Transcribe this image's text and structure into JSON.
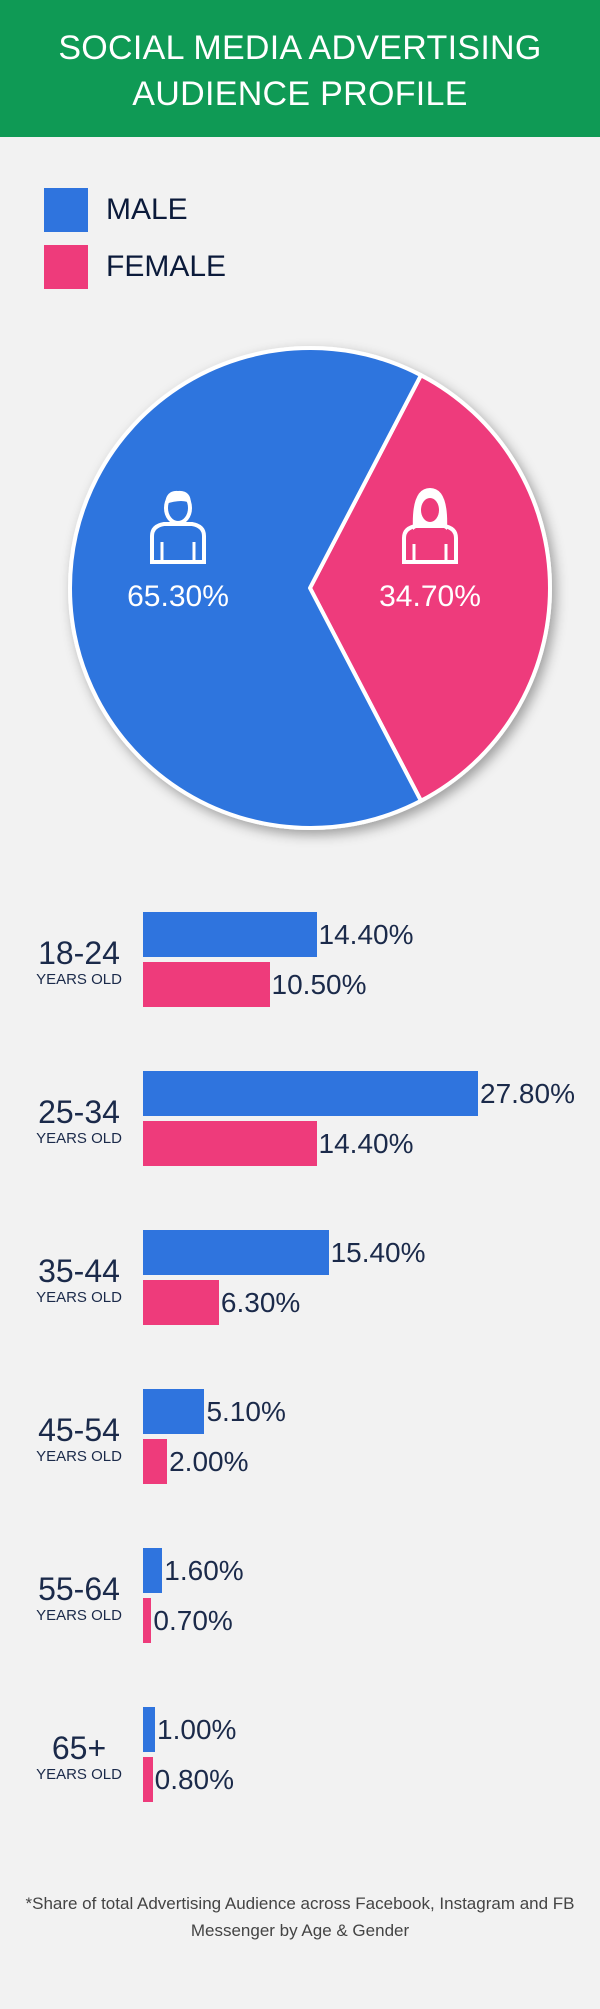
{
  "header": {
    "title": "SOCIAL MEDIA ADVERTISING\nAUDIENCE PROFILE"
  },
  "colors": {
    "male": "#2f74de",
    "female": "#ee3b7b",
    "header": "#0f9a55"
  },
  "legend": [
    {
      "label": "MALE",
      "color": "#2f74de"
    },
    {
      "label": "FEMALE",
      "color": "#ee3b7b"
    }
  ],
  "icons": {
    "male": "male-person-icon",
    "female": "female-person-icon"
  },
  "chart_data": [
    {
      "type": "pie",
      "slices": [
        {
          "name": "MALE",
          "value": 65.3,
          "label": "65.30%",
          "color": "#2f74de"
        },
        {
          "name": "FEMALE",
          "value": 34.7,
          "label": "34.70%",
          "color": "#ee3b7b"
        }
      ]
    },
    {
      "type": "bar",
      "orientation": "horizontal",
      "categories": [
        "18-24",
        "25-34",
        "35-44",
        "45-54",
        "55-64",
        "65+"
      ],
      "category_sublabel": "YEARS OLD",
      "series": [
        {
          "name": "MALE",
          "color": "#2f74de",
          "values": [
            14.4,
            27.8,
            15.4,
            5.1,
            1.6,
            1.0
          ],
          "labels": [
            "14.40%",
            "27.80%",
            "15.40%",
            "5.10%",
            "1.60%",
            "1.00%"
          ]
        },
        {
          "name": "FEMALE",
          "color": "#ee3b7b",
          "values": [
            10.5,
            14.4,
            6.3,
            2.0,
            0.7,
            0.8
          ],
          "labels": [
            "10.50%",
            "14.40%",
            "6.30%",
            "2.00%",
            "0.70%",
            "0.80%"
          ]
        }
      ],
      "xlim": [
        0,
        30
      ]
    }
  ],
  "footnote": "*Share of total Advertising Audience across Facebook, Instagram and FB Messenger by Age & Gender"
}
